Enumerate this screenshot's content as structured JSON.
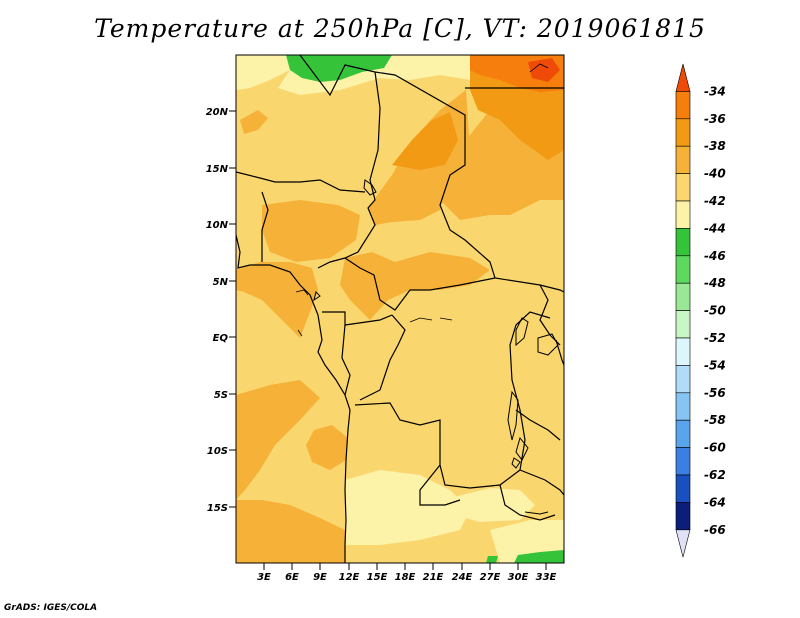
{
  "title": "Temperature at 250hPa [C], VT: 2019061815",
  "credit": "GrADS: IGES/COLA",
  "map": {
    "lon_labels": [
      "3E",
      "6E",
      "9E",
      "12E",
      "15E",
      "18E",
      "21E",
      "24E",
      "27E",
      "30E",
      "33E"
    ],
    "lat_labels": [
      "20N",
      "15N",
      "10N",
      "5N",
      "EQ",
      "5S",
      "10S",
      "15S"
    ]
  },
  "colorbar": {
    "labels": [
      "-34",
      "-36",
      "-38",
      "-40",
      "-42",
      "-44",
      "-46",
      "-48",
      "-50",
      "-52",
      "-54",
      "-56",
      "-58",
      "-60",
      "-62",
      "-64",
      "-66"
    ],
    "colors": [
      "#f04a08",
      "#f57e0c",
      "#f39a14",
      "#f6b139",
      "#fad66e",
      "#fcf2a8",
      "#35c33a",
      "#5fd860",
      "#9ae796",
      "#c8f6c4",
      "#ddf6fb",
      "#b0dcfa",
      "#86c4f3",
      "#5aa4ec",
      "#3b7fe3",
      "#1a4fbf",
      "#0c1e79",
      "#e0e0f6"
    ]
  },
  "legend_colors": {
    "c_34_36": "#f57e0c",
    "c_36_38": "#f39a14",
    "c_38_40": "#f6b139",
    "c_40_42": "#fad66e",
    "c_42_44": "#fcf2a8",
    "c_44_46": "#35c33a"
  }
}
